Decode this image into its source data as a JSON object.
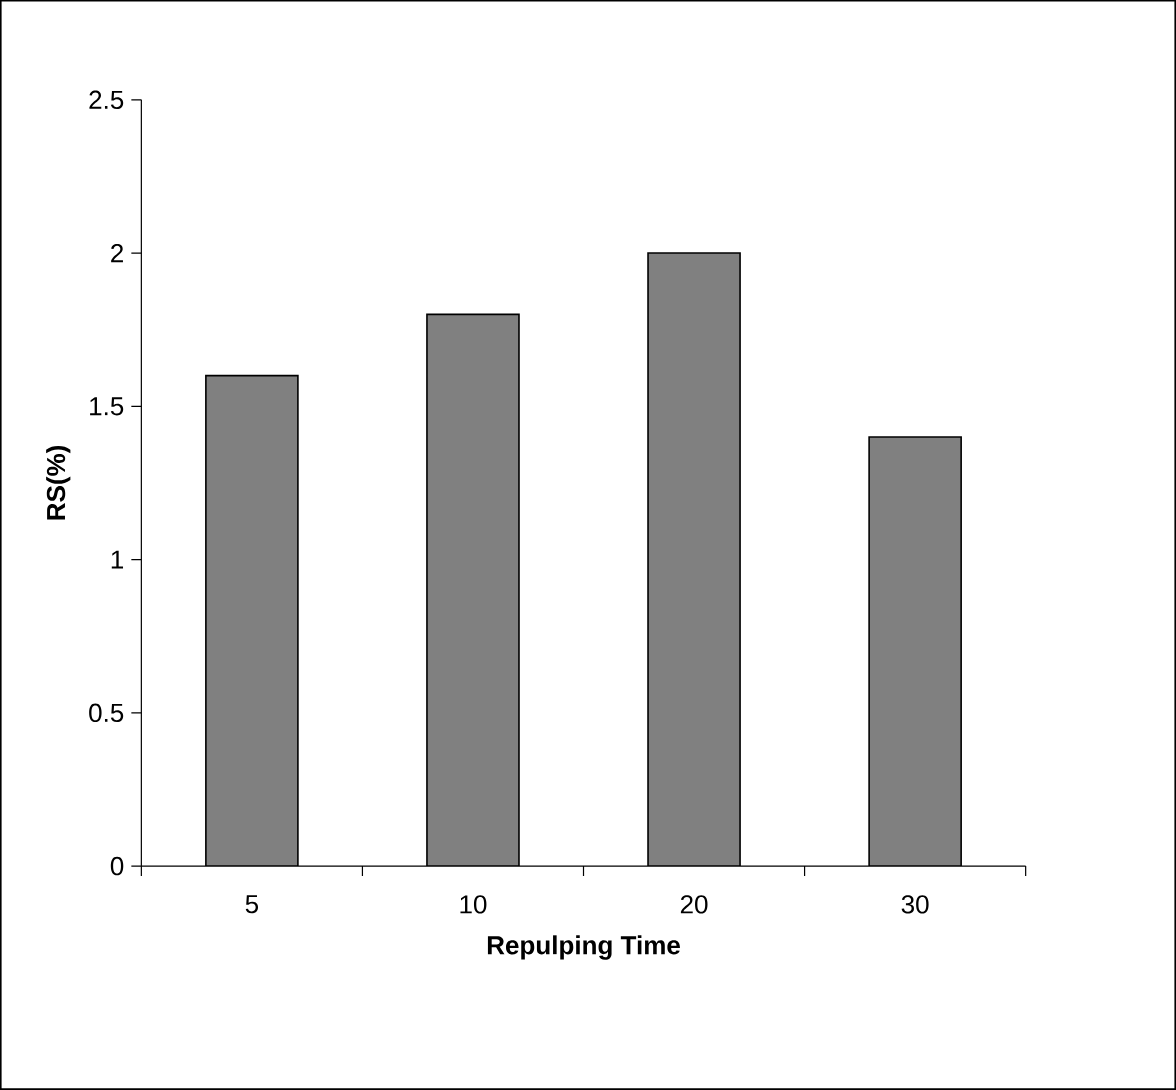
{
  "chart_data": {
    "type": "bar",
    "xlabel": "Repulping Time",
    "ylabel": "RS(%)",
    "categories": [
      "5",
      "10",
      "20",
      "30"
    ],
    "values": [
      1.6,
      1.8,
      2.0,
      1.4
    ],
    "color": "#808080",
    "ylim": [
      0,
      2.5
    ],
    "yticks": [
      0,
      0.5,
      1,
      1.5,
      2,
      2.5
    ]
  }
}
